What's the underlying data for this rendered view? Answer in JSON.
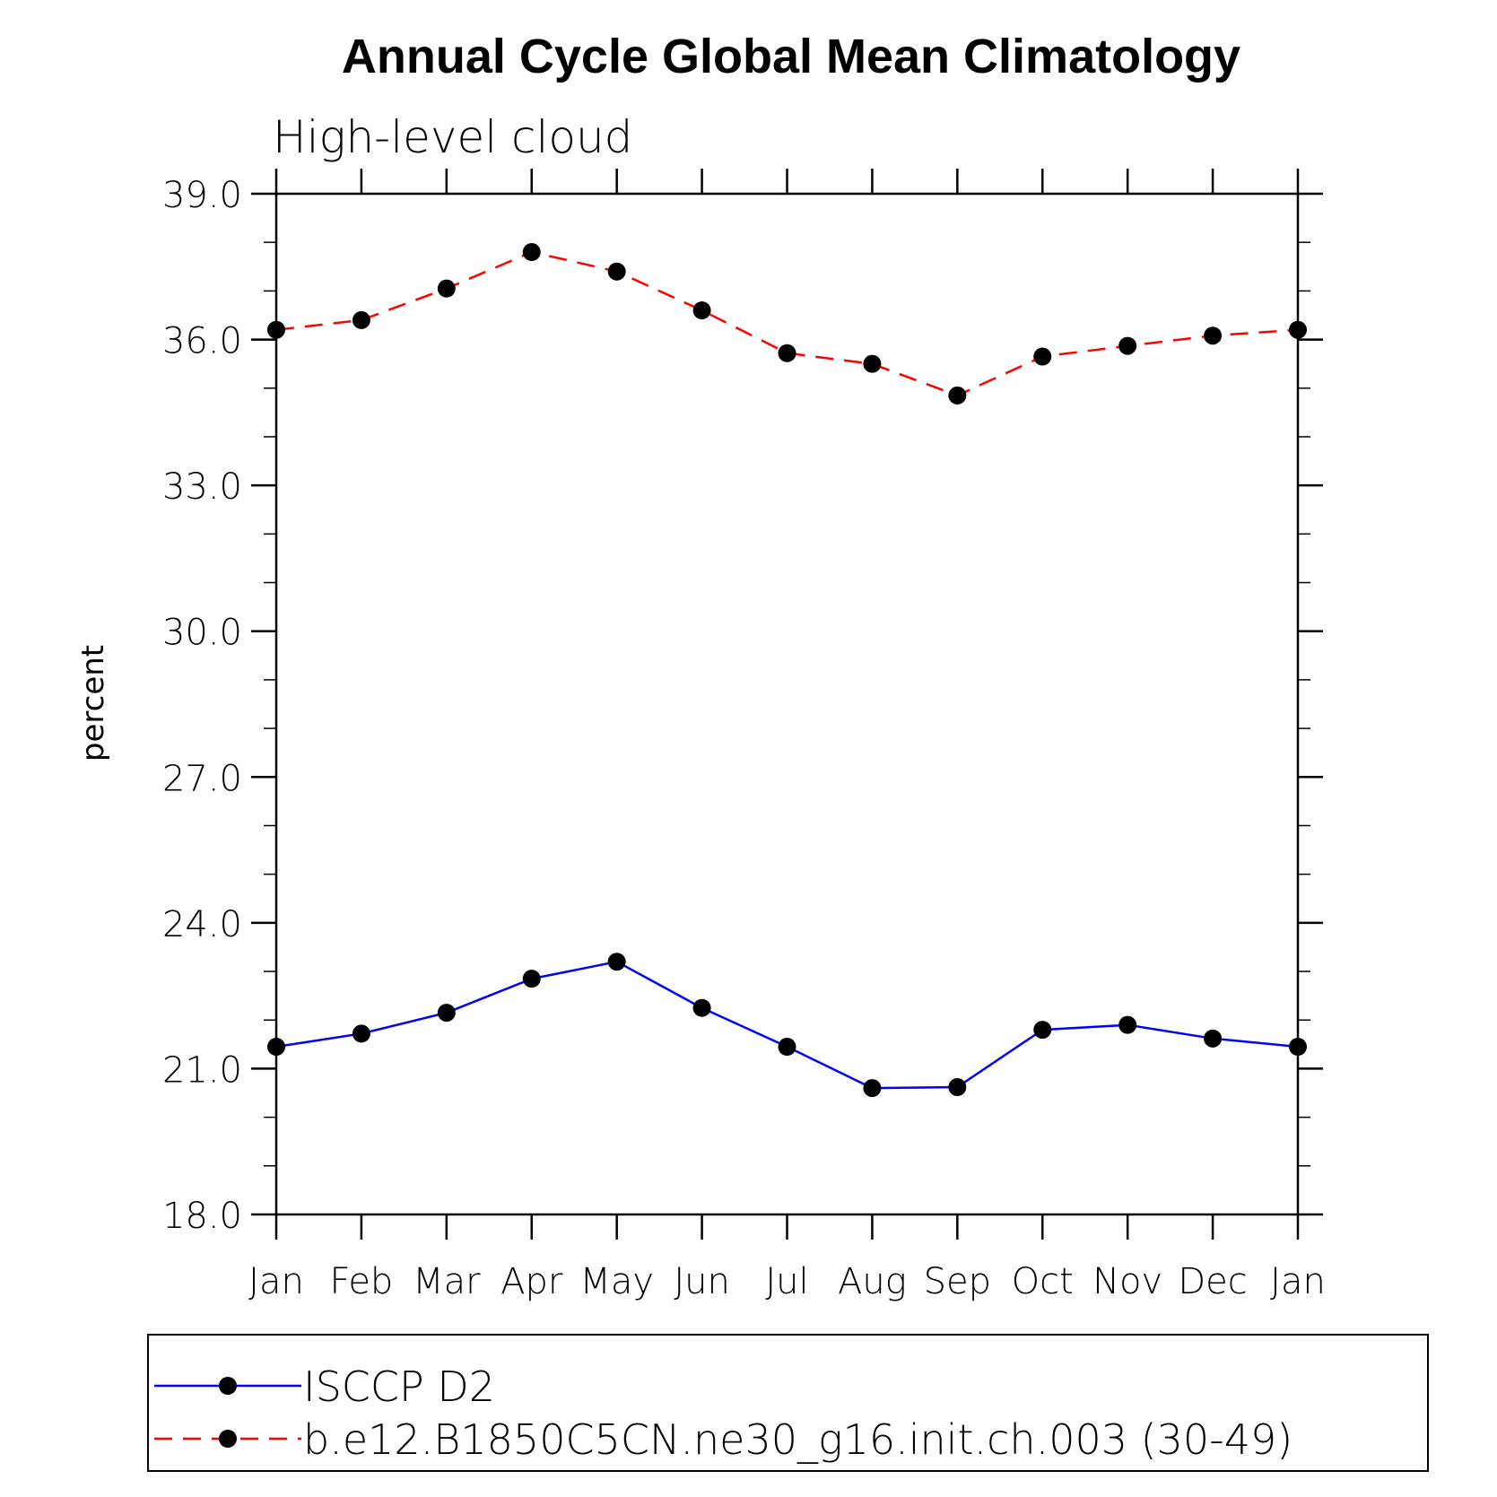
{
  "chart_data": {
    "type": "line",
    "title": "Annual Cycle Global Mean Climatology",
    "subtitle": "High-level cloud",
    "xlabel": "",
    "ylabel": "percent",
    "categories": [
      "Jan",
      "Feb",
      "Mar",
      "Apr",
      "May",
      "Jun",
      "Jul",
      "Aug",
      "Sep",
      "Oct",
      "Nov",
      "Dec",
      "Jan"
    ],
    "ylim": [
      18.0,
      39.0
    ],
    "yticks": [
      "18.0",
      "21.0",
      "24.0",
      "27.0",
      "30.0",
      "33.0",
      "36.0",
      "39.0"
    ],
    "grid": false,
    "legend_position": "bottom",
    "series": [
      {
        "name": "ISCCP D2",
        "color": "#0000ff",
        "line_style": "solid",
        "marker": "filled-circle",
        "values": [
          21.45,
          21.72,
          22.15,
          22.85,
          23.2,
          22.25,
          21.45,
          20.6,
          20.62,
          21.8,
          21.9,
          21.62,
          21.45
        ]
      },
      {
        "name": "b.e12.B1850C5CN.ne30_g16.init.ch.003 (30-49)",
        "color": "#ff0000",
        "line_style": "dashed",
        "marker": "filled-circle",
        "values": [
          36.2,
          36.4,
          37.05,
          37.8,
          37.4,
          36.6,
          35.72,
          35.5,
          34.85,
          35.65,
          35.87,
          36.08,
          36.2
        ]
      }
    ]
  }
}
